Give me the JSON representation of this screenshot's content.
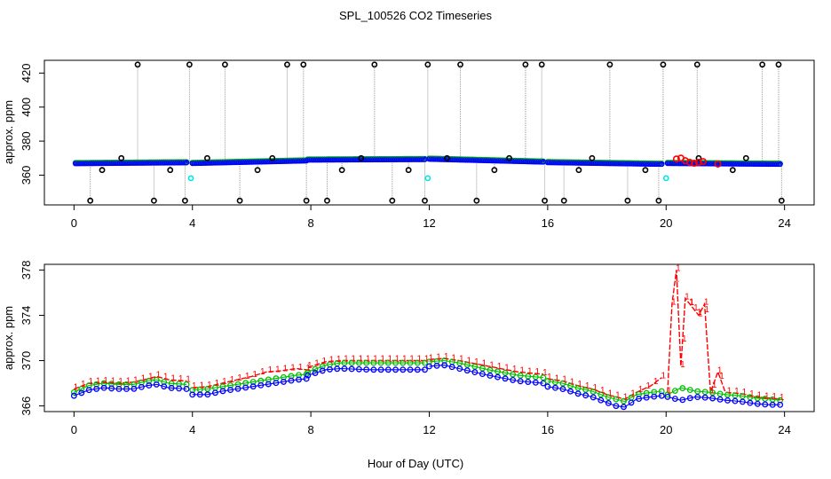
{
  "figure": {
    "title": "SPL_100526  CO2 Timeseries",
    "xlabel": "Hour of Day (UTC)"
  },
  "colors": {
    "raw": "#000000",
    "calibration": "#00e5e5",
    "series_1": "#ff0000",
    "series_2": "#00c000",
    "series_3": "#0000ff",
    "connector": "#999999"
  },
  "chart_data": [
    {
      "type": "scatter",
      "title": "",
      "xlabel": "",
      "ylabel": "approx. ppm",
      "xlim": [
        -1,
        25
      ],
      "ylim": [
        342.5,
        427.5
      ],
      "xticks": [
        0,
        4,
        8,
        12,
        16,
        20,
        24
      ],
      "yticks": [
        360,
        380,
        400,
        420
      ],
      "ytick_labels": [
        "360",
        "380",
        "400",
        "420"
      ],
      "flush_spikes": {
        "high_value": 425,
        "low_value": 345,
        "high_x": [
          2.15,
          3.9,
          5.1,
          7.2,
          7.75,
          10.15,
          11.95,
          13.05,
          15.25,
          15.8,
          18.1,
          19.9,
          21.05,
          23.25,
          23.8
        ],
        "low_x": [
          0.55,
          2.7,
          3.75,
          5.6,
          7.85,
          8.55,
          10.75,
          11.85,
          13.6,
          15.9,
          16.55,
          18.7,
          19.75,
          23.9
        ]
      },
      "mid_markers": [
        {
          "x": 1.6,
          "y": 370
        },
        {
          "x": 4.5,
          "y": 370
        },
        {
          "x": 6.7,
          "y": 370
        },
        {
          "x": 9.7,
          "y": 370
        },
        {
          "x": 12.6,
          "y": 370
        },
        {
          "x": 14.7,
          "y": 370
        },
        {
          "x": 17.5,
          "y": 370
        },
        {
          "x": 21.1,
          "y": 370
        },
        {
          "x": 22.7,
          "y": 370
        },
        {
          "x": 0.95,
          "y": 363
        },
        {
          "x": 3.25,
          "y": 363
        },
        {
          "x": 6.2,
          "y": 363
        },
        {
          "x": 9.05,
          "y": 363
        },
        {
          "x": 11.3,
          "y": 363
        },
        {
          "x": 14.2,
          "y": 363
        },
        {
          "x": 17.05,
          "y": 363
        },
        {
          "x": 19.3,
          "y": 363
        },
        {
          "x": 22.25,
          "y": 363
        }
      ],
      "calibration_points": [
        {
          "x": 3.95,
          "y": 358.2
        },
        {
          "x": 11.95,
          "y": 358.2
        },
        {
          "x": 20.0,
          "y": 358.2
        }
      ],
      "excursion_points": [
        {
          "x": 20.35,
          "y": 369.5
        },
        {
          "x": 20.5,
          "y": 370.0
        },
        {
          "x": 20.65,
          "y": 368.5
        },
        {
          "x": 20.8,
          "y": 367.5
        },
        {
          "x": 20.95,
          "y": 367.0
        },
        {
          "x": 21.1,
          "y": 367.5
        },
        {
          "x": 21.25,
          "y": 368.0
        },
        {
          "x": 21.75,
          "y": 366.5
        }
      ],
      "segments": [
        {
          "x_start": 0.05,
          "x_end": 3.8,
          "y_start": 366.9,
          "y_end": 367.4
        },
        {
          "x_start": 4.0,
          "x_end": 7.85,
          "y_start": 367.0,
          "y_end": 368.5
        },
        {
          "x_start": 7.9,
          "x_end": 11.85,
          "y_start": 369.0,
          "y_end": 369.3
        },
        {
          "x_start": 12.0,
          "x_end": 15.85,
          "y_start": 369.5,
          "y_end": 367.8
        },
        {
          "x_start": 16.0,
          "x_end": 19.85,
          "y_start": 367.5,
          "y_end": 366.5
        },
        {
          "x_start": 20.05,
          "x_end": 23.85,
          "y_start": 367.0,
          "y_end": 366.5
        }
      ]
    },
    {
      "type": "line",
      "title": "",
      "xlabel": "Hour of Day (UTC)",
      "ylabel": "approx. ppm",
      "xlim": [
        -1,
        25
      ],
      "ylim": [
        365.5,
        378.5
      ],
      "xticks": [
        0,
        4,
        8,
        12,
        16,
        20,
        24
      ],
      "yticks": [
        366,
        370,
        374,
        378
      ],
      "ytick_labels": [
        "366",
        "370",
        "374",
        "378"
      ],
      "series": [
        {
          "name": "1",
          "x": [
            0,
            0.5,
            1,
            1.5,
            2,
            2.5,
            2.8,
            3.2,
            3.8,
            4,
            4.5,
            5,
            5.5,
            6,
            6.5,
            7,
            7.5,
            7.85,
            7.9,
            8.5,
            9,
            10,
            11,
            11.85,
            12,
            12.5,
            13,
            14,
            15,
            15.85,
            16,
            16.5,
            17,
            17.5,
            18,
            18.3,
            18.6,
            19,
            19.5,
            19.85,
            20.05,
            20.2,
            20.35,
            20.5,
            20.65,
            20.8,
            20.95,
            21.1,
            21.3,
            21.5,
            21.75,
            22,
            22.5,
            23,
            23.5,
            23.85
          ],
          "values": [
            367.5,
            368.0,
            368.1,
            368.0,
            368.1,
            368.4,
            368.6,
            368.3,
            368.2,
            367.6,
            367.7,
            368.0,
            368.3,
            368.6,
            369.0,
            369.1,
            369.3,
            369.2,
            369.4,
            369.9,
            370.0,
            370.0,
            370.0,
            370.0,
            370.1,
            370.2,
            370.0,
            369.5,
            369.0,
            368.8,
            368.4,
            368.2,
            367.8,
            367.5,
            367.0,
            366.8,
            366.6,
            367.2,
            367.8,
            368.5,
            367.2,
            375.0,
            378.0,
            369.5,
            375.5,
            375.0,
            374.5,
            374.0,
            375.0,
            367.2,
            369.0,
            367.2,
            367.1,
            366.8,
            366.7,
            366.6
          ]
        },
        {
          "name": "2",
          "x": [
            0,
            0.5,
            1,
            1.5,
            2,
            2.5,
            2.8,
            3.2,
            3.8,
            4,
            4.5,
            5,
            5.5,
            6,
            6.5,
            7,
            7.5,
            7.85,
            7.9,
            8.5,
            9,
            10,
            11,
            11.85,
            12,
            12.5,
            13,
            14,
            15,
            15.85,
            16,
            16.5,
            17,
            17.5,
            18,
            18.3,
            18.6,
            19,
            19.5,
            19.85,
            20.05,
            20.5,
            21,
            21.5,
            22,
            22.5,
            23,
            23.5,
            23.85
          ],
          "values": [
            367.2,
            367.8,
            368.0,
            367.9,
            367.9,
            368.2,
            368.3,
            368.0,
            367.9,
            367.4,
            367.5,
            367.7,
            367.9,
            368.1,
            368.3,
            368.5,
            368.7,
            368.8,
            369.0,
            369.6,
            369.8,
            369.8,
            369.8,
            369.8,
            369.9,
            370.0,
            369.8,
            369.2,
            368.7,
            368.5,
            368.2,
            368.0,
            367.6,
            367.3,
            366.8,
            366.6,
            366.4,
            367.0,
            367.2,
            367.3,
            367.0,
            367.6,
            367.3,
            367.2,
            367.0,
            366.9,
            366.7,
            366.6,
            366.5
          ]
        },
        {
          "name": "3",
          "x": [
            0,
            0.5,
            1,
            1.5,
            2,
            2.5,
            2.8,
            3.2,
            3.8,
            4,
            4.5,
            5,
            5.5,
            6,
            6.5,
            7,
            7.5,
            7.85,
            7.9,
            8.5,
            9,
            10,
            11,
            11.85,
            12,
            12.5,
            13,
            14,
            15,
            15.85,
            16,
            16.5,
            17,
            17.5,
            18,
            18.3,
            18.6,
            19,
            19.5,
            19.85,
            20.05,
            20.5,
            21,
            21.5,
            22,
            22.5,
            23,
            23.5,
            23.85
          ],
          "values": [
            366.9,
            367.4,
            367.6,
            367.5,
            367.5,
            367.8,
            367.9,
            367.6,
            367.5,
            367.0,
            367.0,
            367.3,
            367.5,
            367.7,
            367.9,
            368.1,
            368.3,
            368.4,
            368.7,
            369.2,
            369.3,
            369.2,
            369.2,
            369.2,
            369.5,
            369.6,
            369.3,
            368.7,
            368.2,
            368.0,
            367.7,
            367.5,
            367.1,
            366.8,
            366.3,
            366.0,
            365.9,
            366.6,
            366.8,
            366.9,
            366.8,
            366.5,
            366.8,
            366.7,
            366.5,
            366.4,
            366.2,
            366.1,
            366.1
          ]
        }
      ]
    }
  ]
}
